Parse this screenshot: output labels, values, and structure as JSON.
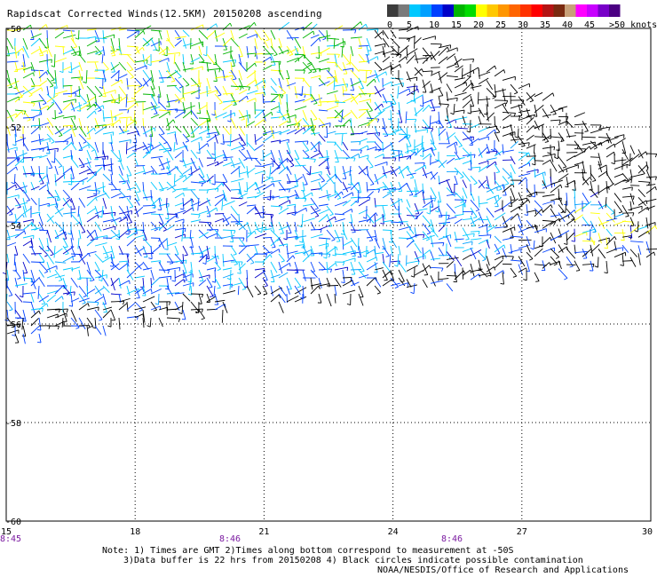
{
  "title": "Rapidscat Corrected Winds(12.5KM) 20150208 ascending",
  "legend": {
    "colors": [
      "#3c3c3c",
      "#7a7a7a",
      "#00c8ff",
      "#00a0ff",
      "#0040ff",
      "#0000c8",
      "#00b400",
      "#00dc00",
      "#ffff00",
      "#ffc800",
      "#ff9600",
      "#ff6400",
      "#ff3200",
      "#ff0000",
      "#b41414",
      "#7a2a10",
      "#c8a078",
      "#ff00ff",
      "#c800ff",
      "#7800c8",
      "#4b0082"
    ],
    "labels": [
      "0",
      "5",
      "10",
      "15",
      "20",
      "25",
      "30",
      "35",
      "40",
      "45",
      ">50 knots"
    ]
  },
  "axes": {
    "lat_labels": [
      "-50",
      "-52",
      "-54",
      "-56",
      "-58",
      "-60"
    ],
    "lon_labels": [
      "15",
      "18",
      "21",
      "24",
      "27",
      "30"
    ],
    "time_labels": [
      "8:45",
      "8:46",
      "8:46"
    ]
  },
  "map_data": {
    "lon_range": [
      15,
      30
    ],
    "lat_range": [
      -60,
      -50
    ],
    "grid": true
  },
  "notes": [
    "Note: 1) Times are GMT 2)Times along bottom correspond to measurement at -50S",
    "3)Data buffer is 22 hrs from 20150208 4) Black circles indicate possible contamination"
  ],
  "credit": "NOAA/NESDIS/Office of Research and Applications"
}
